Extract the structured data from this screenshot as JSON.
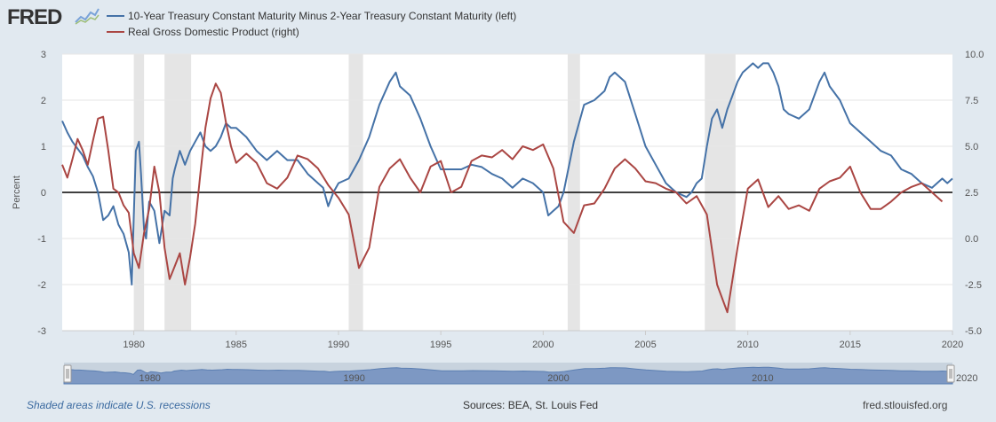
{
  "header": {
    "logo_text": "FRED",
    "logo_icon": "trend-graph-icon"
  },
  "legend": [
    {
      "label": "10-Year Treasury Constant Maturity Minus 2-Year Treasury Constant Maturity (left)",
      "color": "#4572a7"
    },
    {
      "label": "Real Gross Domestic Product (right)",
      "color": "#aa4643"
    }
  ],
  "footer": {
    "note": "Shaded areas indicate U.S. recessions",
    "sources": "Sources: BEA, St. Louis Fed",
    "site": "fred.stlouisfed.org"
  },
  "chart_data": {
    "type": "line",
    "ylabel": "Percent",
    "ylim_left": [
      -3,
      3
    ],
    "ylim_right": [
      -5.0,
      10.0
    ],
    "xlim": [
      1976.5,
      2020.0
    ],
    "left_ticks": [
      "3",
      "2",
      "1",
      "0",
      "-1",
      "-2",
      "-3"
    ],
    "right_ticks": [
      "10.0",
      "7.5",
      "5.0",
      "2.5",
      "0.0",
      "-2.5",
      "-5.0"
    ],
    "x_ticks": [
      "1980",
      "1985",
      "1990",
      "1995",
      "2000",
      "2005",
      "2010",
      "2015",
      "2020"
    ],
    "navigator_labels": [
      "1980",
      "1990",
      "2000",
      "2010",
      "2020"
    ],
    "recessions": [
      [
        1980.0,
        1980.5
      ],
      [
        1981.5,
        1982.8
      ],
      [
        1990.5,
        1991.2
      ],
      [
        2001.2,
        2001.8
      ],
      [
        2007.9,
        2009.4
      ]
    ],
    "series": [
      {
        "name": "10-Year Treasury Constant Maturity Minus 2-Year Treasury Constant Maturity (left)",
        "axis": "left",
        "color": "#4572a7",
        "x": [
          1976.5,
          1976.75,
          1977,
          1977.25,
          1977.5,
          1977.75,
          1978,
          1978.25,
          1978.5,
          1978.75,
          1979,
          1979.25,
          1979.5,
          1979.75,
          1979.9,
          1980.0,
          1980.1,
          1980.25,
          1980.35,
          1980.5,
          1980.6,
          1980.75,
          1981.0,
          1981.25,
          1981.5,
          1981.75,
          1981.9,
          1982.0,
          1982.25,
          1982.5,
          1982.75,
          1983.0,
          1983.25,
          1983.5,
          1983.75,
          1984.0,
          1984.25,
          1984.5,
          1984.75,
          1985.0,
          1985.5,
          1986.0,
          1986.5,
          1987.0,
          1987.5,
          1988.0,
          1988.5,
          1989.0,
          1989.25,
          1989.5,
          1989.75,
          1990.0,
          1990.5,
          1991.0,
          1991.5,
          1992.0,
          1992.5,
          1992.8,
          1993.0,
          1993.5,
          1994.0,
          1994.5,
          1995.0,
          1995.5,
          1996.0,
          1996.5,
          1997.0,
          1997.5,
          1998.0,
          1998.5,
          1999.0,
          1999.5,
          2000.0,
          2000.25,
          2000.5,
          2000.75,
          2001.0,
          2001.5,
          2002.0,
          2002.5,
          2003.0,
          2003.25,
          2003.5,
          2004.0,
          2004.5,
          2005.0,
          2005.5,
          2006.0,
          2006.5,
          2007.0,
          2007.25,
          2007.5,
          2007.75,
          2008.0,
          2008.25,
          2008.5,
          2008.75,
          2009.0,
          2009.25,
          2009.5,
          2009.75,
          2010.0,
          2010.25,
          2010.5,
          2010.75,
          2011.0,
          2011.25,
          2011.5,
          2011.75,
          2012.0,
          2012.5,
          2013.0,
          2013.5,
          2013.75,
          2014.0,
          2014.5,
          2015.0,
          2015.5,
          2016.0,
          2016.5,
          2017.0,
          2017.5,
          2018.0,
          2018.5,
          2019.0,
          2019.25,
          2019.5,
          2019.75,
          2020.0
        ],
        "values": [
          1.55,
          1.3,
          1.1,
          0.95,
          0.8,
          0.55,
          0.35,
          0.0,
          -0.6,
          -0.5,
          -0.3,
          -0.7,
          -0.9,
          -1.3,
          -2.0,
          -0.5,
          0.9,
          1.1,
          0.4,
          -0.8,
          -1.0,
          -0.2,
          -0.4,
          -1.1,
          -0.4,
          -0.5,
          0.3,
          0.5,
          0.9,
          0.6,
          0.9,
          1.1,
          1.3,
          1.0,
          0.9,
          1.0,
          1.2,
          1.5,
          1.4,
          1.4,
          1.2,
          0.9,
          0.7,
          0.9,
          0.7,
          0.7,
          0.4,
          0.2,
          0.1,
          -0.3,
          0.0,
          0.2,
          0.3,
          0.7,
          1.2,
          1.9,
          2.4,
          2.6,
          2.3,
          2.1,
          1.6,
          1.0,
          0.5,
          0.5,
          0.5,
          0.6,
          0.55,
          0.4,
          0.3,
          0.1,
          0.3,
          0.2,
          0.0,
          -0.5,
          -0.4,
          -0.3,
          0.0,
          1.1,
          1.9,
          2.0,
          2.2,
          2.5,
          2.6,
          2.4,
          1.7,
          1.0,
          0.6,
          0.2,
          0.0,
          -0.1,
          0.0,
          0.2,
          0.3,
          1.0,
          1.6,
          1.8,
          1.4,
          1.8,
          2.1,
          2.4,
          2.6,
          2.7,
          2.8,
          2.7,
          2.8,
          2.8,
          2.6,
          2.3,
          1.8,
          1.7,
          1.6,
          1.8,
          2.4,
          2.6,
          2.3,
          2.0,
          1.5,
          1.3,
          1.1,
          0.9,
          0.8,
          0.5,
          0.4,
          0.2,
          0.1,
          0.2,
          0.3,
          0.2,
          0.3
        ]
      },
      {
        "name": "Real Gross Domestic Product (right)",
        "axis": "right",
        "color": "#aa4643",
        "x": [
          1976.5,
          1976.75,
          1977,
          1977.25,
          1977.5,
          1977.75,
          1978,
          1978.25,
          1978.5,
          1978.75,
          1979,
          1979.25,
          1979.5,
          1979.75,
          1980.0,
          1980.25,
          1980.5,
          1980.75,
          1981.0,
          1981.25,
          1981.5,
          1981.75,
          1982.0,
          1982.25,
          1982.5,
          1982.75,
          1983.0,
          1983.25,
          1983.5,
          1983.75,
          1984.0,
          1984.25,
          1984.5,
          1984.75,
          1985.0,
          1985.5,
          1986.0,
          1986.5,
          1987.0,
          1987.5,
          1988.0,
          1988.5,
          1989.0,
          1989.5,
          1990.0,
          1990.5,
          1991.0,
          1991.5,
          1992.0,
          1992.5,
          1993.0,
          1993.5,
          1994.0,
          1994.5,
          1995.0,
          1995.5,
          1996.0,
          1996.5,
          1997.0,
          1997.5,
          1998.0,
          1998.5,
          1999.0,
          1999.5,
          2000.0,
          2000.5,
          2001.0,
          2001.5,
          2002.0,
          2002.5,
          2003.0,
          2003.5,
          2004.0,
          2004.5,
          2005.0,
          2005.5,
          2006.0,
          2006.5,
          2007.0,
          2007.5,
          2008.0,
          2008.5,
          2009.0,
          2009.5,
          2010.0,
          2010.5,
          2011.0,
          2011.5,
          2012.0,
          2012.5,
          2013.0,
          2013.5,
          2014.0,
          2014.5,
          2015.0,
          2015.5,
          2016.0,
          2016.5,
          2017.0,
          2017.5,
          2018.0,
          2018.5,
          2019.0,
          2019.5
        ],
        "values": [
          4.0,
          3.3,
          4.3,
          5.4,
          4.8,
          4.0,
          5.3,
          6.5,
          6.6,
          4.8,
          2.7,
          2.5,
          1.8,
          1.4,
          -0.8,
          -1.6,
          0.3,
          1.6,
          3.9,
          2.5,
          -0.5,
          -2.2,
          -1.5,
          -0.8,
          -2.5,
          -1.0,
          0.8,
          3.5,
          6.0,
          7.6,
          8.4,
          7.9,
          6.3,
          5.0,
          4.1,
          4.6,
          4.1,
          3.0,
          2.7,
          3.3,
          4.5,
          4.3,
          3.8,
          2.9,
          2.2,
          1.3,
          -1.6,
          -0.5,
          2.8,
          3.8,
          4.3,
          3.3,
          2.5,
          3.9,
          4.2,
          2.5,
          2.8,
          4.2,
          4.5,
          4.4,
          4.8,
          4.3,
          5.0,
          4.8,
          5.1,
          3.8,
          0.9,
          0.3,
          1.8,
          1.9,
          2.7,
          3.8,
          4.3,
          3.8,
          3.1,
          3.0,
          2.7,
          2.5,
          1.9,
          2.3,
          1.3,
          -2.5,
          -4.0,
          -0.5,
          2.7,
          3.2,
          1.7,
          2.3,
          1.6,
          1.8,
          1.5,
          2.7,
          3.1,
          3.3,
          3.9,
          2.5,
          1.6,
          1.6,
          2.0,
          2.5,
          2.8,
          3.0,
          2.5,
          2.0
        ]
      }
    ]
  }
}
